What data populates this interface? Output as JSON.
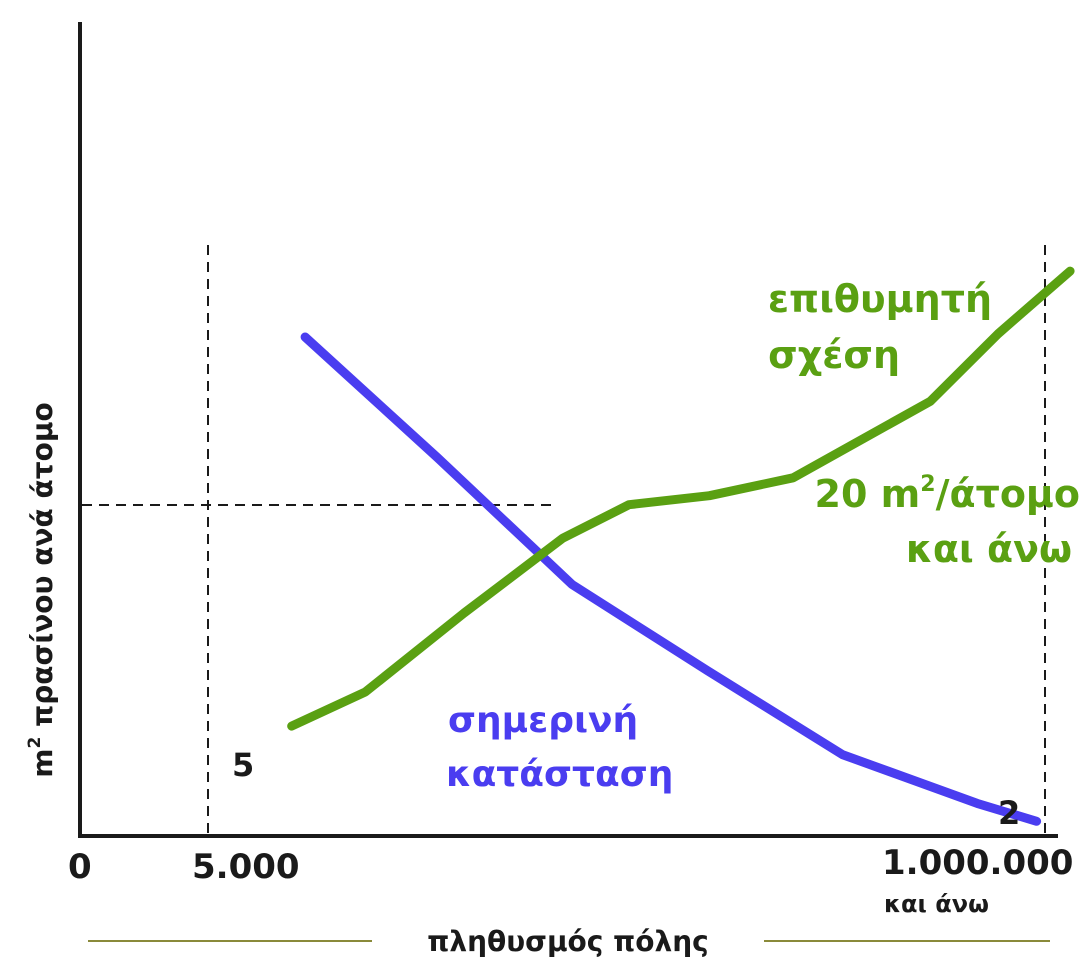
{
  "chart_data": {
    "type": "line",
    "title": "",
    "xlabel": "πληθυσμός πόλης",
    "ylabel": "m² πρασίνου ανά άτομο",
    "ylabel_prefix": "m",
    "ylabel_sup": "2",
    "ylabel_rest": " πρασίνου ανά άτομο",
    "x_ticks": [
      {
        "value": 0,
        "label": "0"
      },
      {
        "value": 5000,
        "label": "5.000"
      },
      {
        "value": 1000000,
        "label": "1.000.000",
        "sublabel": "και άνω"
      }
    ],
    "series": [
      {
        "name": "σημερινή κατάσταση",
        "name_lines": [
          "σημερινή",
          "κατάσταση"
        ],
        "color": "#4a3df0",
        "points": [
          [
            0.116,
            0.613
          ],
          [
            0.274,
            0.465
          ],
          [
            0.435,
            0.309
          ],
          [
            0.597,
            0.203
          ],
          [
            0.758,
            0.1
          ],
          [
            0.919,
            0.04
          ],
          [
            0.99,
            0.018
          ]
        ],
        "start_label": "5",
        "end_label": "2"
      },
      {
        "name": "επιθυμητή σχέση",
        "name_lines": [
          "επιθυμητή",
          "σχέση"
        ],
        "color": "#5aa012",
        "points": [
          [
            0.1,
            0.135
          ],
          [
            0.188,
            0.177
          ],
          [
            0.306,
            0.274
          ],
          [
            0.424,
            0.366
          ],
          [
            0.503,
            0.407
          ],
          [
            0.599,
            0.418
          ],
          [
            0.699,
            0.44
          ],
          [
            0.863,
            0.534
          ],
          [
            0.944,
            0.617
          ],
          [
            1.03,
            0.694
          ]
        ]
      }
    ],
    "reference_line": {
      "y_label": "20 m²/άτομο και άνω",
      "y_label_lines": [
        "20 m",
        "2",
        "/άτομο",
        "και άνω"
      ]
    },
    "grid": false,
    "legend": "none"
  }
}
